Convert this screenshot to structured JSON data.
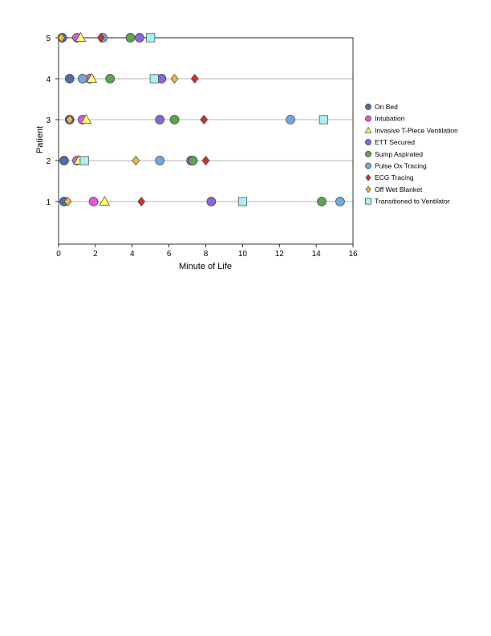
{
  "chart_data": {
    "type": "scatter",
    "title": "",
    "xlabel": "Minute of Life",
    "ylabel": "Patient",
    "xlim": [
      0,
      16
    ],
    "ylim": [
      0,
      5
    ],
    "xticks": [
      0,
      2,
      4,
      6,
      8,
      10,
      12,
      14,
      16
    ],
    "yticks": [
      1,
      2,
      3,
      4,
      5
    ],
    "grid": "horizontal lines at each patient",
    "legend_position": "right",
    "series": [
      {
        "name": "On Bed",
        "marker": "circle",
        "color": "#4F6BA8",
        "points": [
          [
            0.3,
            1
          ],
          [
            0.3,
            2
          ],
          [
            0.6,
            3
          ],
          [
            0.6,
            4
          ],
          [
            0.2,
            5
          ]
        ]
      },
      {
        "name": "Intubation",
        "marker": "circle",
        "color": "#E157D8",
        "points": [
          [
            1.9,
            1
          ],
          [
            1.0,
            2
          ],
          [
            1.3,
            3
          ],
          [
            1.7,
            4
          ],
          [
            1.0,
            5
          ]
        ]
      },
      {
        "name": "Invasive T-Piece Ventilation",
        "marker": "triangle",
        "color": "#FFFF66",
        "points": [
          [
            2.5,
            1
          ],
          [
            1.1,
            2
          ],
          [
            1.5,
            3
          ],
          [
            1.8,
            4
          ],
          [
            1.2,
            5
          ]
        ]
      },
      {
        "name": "ETT Secured",
        "marker": "circle",
        "color": "#8B65D3",
        "points": [
          [
            8.3,
            1
          ],
          [
            7.2,
            2
          ],
          [
            5.5,
            3
          ],
          [
            5.6,
            4
          ],
          [
            4.4,
            5
          ]
        ]
      },
      {
        "name": "Sump Aspirated",
        "marker": "circle",
        "color": "#5AA54E",
        "points": [
          [
            14.3,
            1
          ],
          [
            7.3,
            2
          ],
          [
            6.3,
            3
          ],
          [
            2.8,
            4
          ],
          [
            3.9,
            5
          ]
        ]
      },
      {
        "name": "Pulse Ox Tracing",
        "marker": "circle",
        "color": "#6FA8DC",
        "points": [
          [
            15.3,
            1
          ],
          [
            5.5,
            2
          ],
          [
            12.6,
            3
          ],
          [
            1.3,
            4
          ],
          [
            2.4,
            5
          ]
        ]
      },
      {
        "name": "ECG Tracing",
        "marker": "diamond",
        "color": "#D0312D",
        "points": [
          [
            4.5,
            1
          ],
          [
            8.0,
            2
          ],
          [
            7.9,
            3
          ],
          [
            7.4,
            4
          ],
          [
            2.3,
            5
          ]
        ]
      },
      {
        "name": "Off Wet Blanket",
        "marker": "diamond",
        "color": "#F0B840",
        "points": [
          [
            0.5,
            1
          ],
          [
            4.2,
            2
          ],
          [
            0.6,
            3
          ],
          [
            6.3,
            4
          ],
          [
            0.15,
            5
          ]
        ]
      },
      {
        "name": "Transitioned to Ventilator",
        "marker": "square",
        "color": "#A8F0F5",
        "points": [
          [
            10.0,
            1
          ],
          [
            1.4,
            2
          ],
          [
            14.4,
            3
          ],
          [
            5.2,
            4
          ],
          [
            5.0,
            5
          ]
        ]
      }
    ]
  }
}
